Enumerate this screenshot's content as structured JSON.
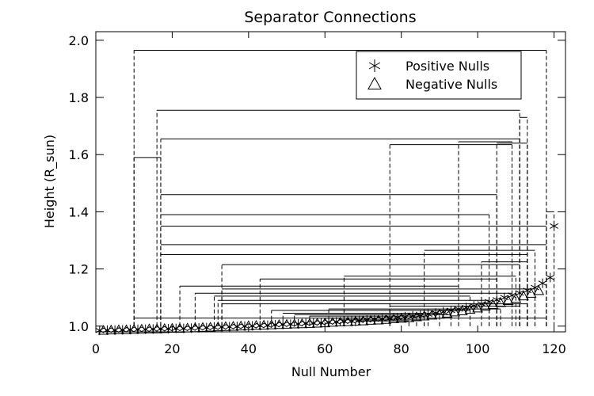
{
  "chart_data": {
    "type": "scatter",
    "title": "Separator Connections",
    "xlabel": "Null Number",
    "ylabel": "Height (R_sun)",
    "xlim": [
      0,
      123
    ],
    "ylim": [
      0.98,
      2.03
    ],
    "xticks": [
      0,
      20,
      40,
      60,
      80,
      100,
      120
    ],
    "xtick_labels": [
      "0",
      "20",
      "40",
      "60",
      "80",
      "100",
      "120"
    ],
    "yticks": [
      1.0,
      1.2,
      1.4,
      1.6,
      1.8,
      2.0
    ],
    "ytick_labels": [
      "1.0",
      "1.2",
      "1.4",
      "1.6",
      "1.8",
      "2.0"
    ],
    "legend": {
      "placement": "top-right",
      "entries": [
        {
          "label": "Positive Nulls",
          "marker": "asterisk"
        },
        {
          "label": "Negative Nulls",
          "marker": "triangle"
        }
      ]
    },
    "series": [
      {
        "name": "Positive Nulls",
        "marker": "asterisk",
        "x": [
          1,
          3,
          5,
          7,
          9,
          11,
          13,
          15,
          17,
          19,
          21,
          23,
          25,
          27,
          29,
          31,
          33,
          35,
          37,
          39,
          41,
          43,
          45,
          47,
          49,
          51,
          53,
          55,
          57,
          59,
          61,
          63,
          65,
          67,
          69,
          71,
          73,
          75,
          77,
          79,
          81,
          83,
          85,
          87,
          89,
          91,
          93,
          95,
          97,
          99,
          101,
          103,
          105,
          107,
          109,
          111,
          113,
          115,
          117,
          119,
          120
        ],
        "y": [
          0.985,
          0.986,
          0.986,
          0.987,
          0.988,
          0.989,
          0.989,
          0.99,
          0.991,
          0.991,
          0.992,
          0.992,
          0.993,
          0.994,
          0.995,
          0.996,
          0.997,
          0.998,
          0.999,
          1.0,
          1.001,
          1.002,
          1.003,
          1.005,
          1.006,
          1.007,
          1.008,
          1.01,
          1.011,
          1.012,
          1.014,
          1.015,
          1.017,
          1.018,
          1.02,
          1.022,
          1.024,
          1.026,
          1.028,
          1.03,
          1.033,
          1.036,
          1.039,
          1.042,
          1.046,
          1.05,
          1.055,
          1.06,
          1.065,
          1.071,
          1.078,
          1.085,
          1.092,
          1.1,
          1.108,
          1.116,
          1.125,
          1.135,
          1.15,
          1.17,
          1.35
        ]
      },
      {
        "name": "Negative Nulls",
        "marker": "triangle",
        "x": [
          2,
          4,
          6,
          8,
          10,
          12,
          14,
          16,
          18,
          20,
          22,
          24,
          26,
          28,
          30,
          32,
          34,
          36,
          38,
          40,
          42,
          44,
          46,
          48,
          50,
          52,
          54,
          56,
          58,
          60,
          62,
          64,
          66,
          68,
          70,
          72,
          74,
          76,
          78,
          80,
          82,
          84,
          86,
          88,
          90,
          92,
          94,
          96,
          98,
          100,
          102,
          104,
          106,
          108,
          110,
          112,
          114,
          116
        ],
        "y": [
          0.985,
          0.986,
          0.987,
          0.987,
          0.988,
          0.989,
          0.99,
          0.99,
          0.991,
          0.992,
          0.992,
          0.993,
          0.994,
          0.995,
          0.996,
          0.997,
          0.998,
          0.999,
          1.0,
          1.001,
          1.002,
          1.003,
          1.004,
          1.005,
          1.006,
          1.007,
          1.008,
          1.009,
          1.01,
          1.011,
          1.013,
          1.014,
          1.015,
          1.017,
          1.018,
          1.02,
          1.021,
          1.023,
          1.025,
          1.027,
          1.029,
          1.032,
          1.035,
          1.038,
          1.041,
          1.045,
          1.049,
          1.053,
          1.058,
          1.063,
          1.069,
          1.075,
          1.082,
          1.089,
          1.097,
          1.105,
          1.114,
          1.124
        ]
      }
    ],
    "connections": [
      {
        "x1": 10,
        "x2": 118,
        "y": 1.965
      },
      {
        "x1": 10,
        "x2": 17,
        "y": 1.59
      },
      {
        "x1": 16,
        "x2": 111,
        "y": 1.755
      },
      {
        "x1": 111,
        "x2": 113,
        "y": 1.73
      },
      {
        "x1": 17,
        "x2": 111,
        "y": 1.655
      },
      {
        "x1": 77,
        "x2": 109,
        "y": 1.635
      },
      {
        "x1": 95,
        "x2": 109,
        "y": 1.645
      },
      {
        "x1": 105,
        "x2": 113,
        "y": 1.64
      },
      {
        "x1": 17,
        "x2": 105,
        "y": 1.46
      },
      {
        "x1": 17,
        "x2": 103,
        "y": 1.39
      },
      {
        "x1": 118,
        "x2": 120,
        "y": 1.4
      },
      {
        "x1": 17,
        "x2": 118,
        "y": 1.35
      },
      {
        "x1": 17,
        "x2": 118,
        "y": 1.285
      },
      {
        "x1": 17,
        "x2": 113,
        "y": 1.25
      },
      {
        "x1": 86,
        "x2": 115,
        "y": 1.265
      },
      {
        "x1": 33,
        "x2": 111,
        "y": 1.215
      },
      {
        "x1": 101,
        "x2": 113,
        "y": 1.225
      },
      {
        "x1": 65,
        "x2": 110,
        "y": 1.175
      },
      {
        "x1": 43,
        "x2": 105,
        "y": 1.165
      },
      {
        "x1": 22,
        "x2": 95,
        "y": 1.14
      },
      {
        "x1": 33,
        "x2": 115,
        "y": 1.13
      },
      {
        "x1": 26,
        "x2": 109,
        "y": 1.115
      },
      {
        "x1": 31,
        "x2": 98,
        "y": 1.105
      },
      {
        "x1": 32,
        "x2": 103,
        "y": 1.09
      },
      {
        "x1": 33,
        "x2": 113,
        "y": 1.078
      },
      {
        "x1": 77,
        "x2": 111,
        "y": 1.07
      },
      {
        "x1": 61,
        "x2": 106,
        "y": 1.06
      },
      {
        "x1": 46,
        "x2": 98,
        "y": 1.055
      },
      {
        "x1": 49,
        "x2": 90,
        "y": 1.045
      },
      {
        "x1": 52,
        "x2": 93,
        "y": 1.04
      },
      {
        "x1": 56,
        "x2": 87,
        "y": 1.035
      },
      {
        "x1": 60,
        "x2": 84,
        "y": 1.028
      },
      {
        "x1": 64,
        "x2": 86,
        "y": 1.022
      },
      {
        "x1": 68,
        "x2": 82,
        "y": 1.018
      },
      {
        "x1": 10,
        "x2": 118,
        "y": 1.028
      }
    ]
  }
}
